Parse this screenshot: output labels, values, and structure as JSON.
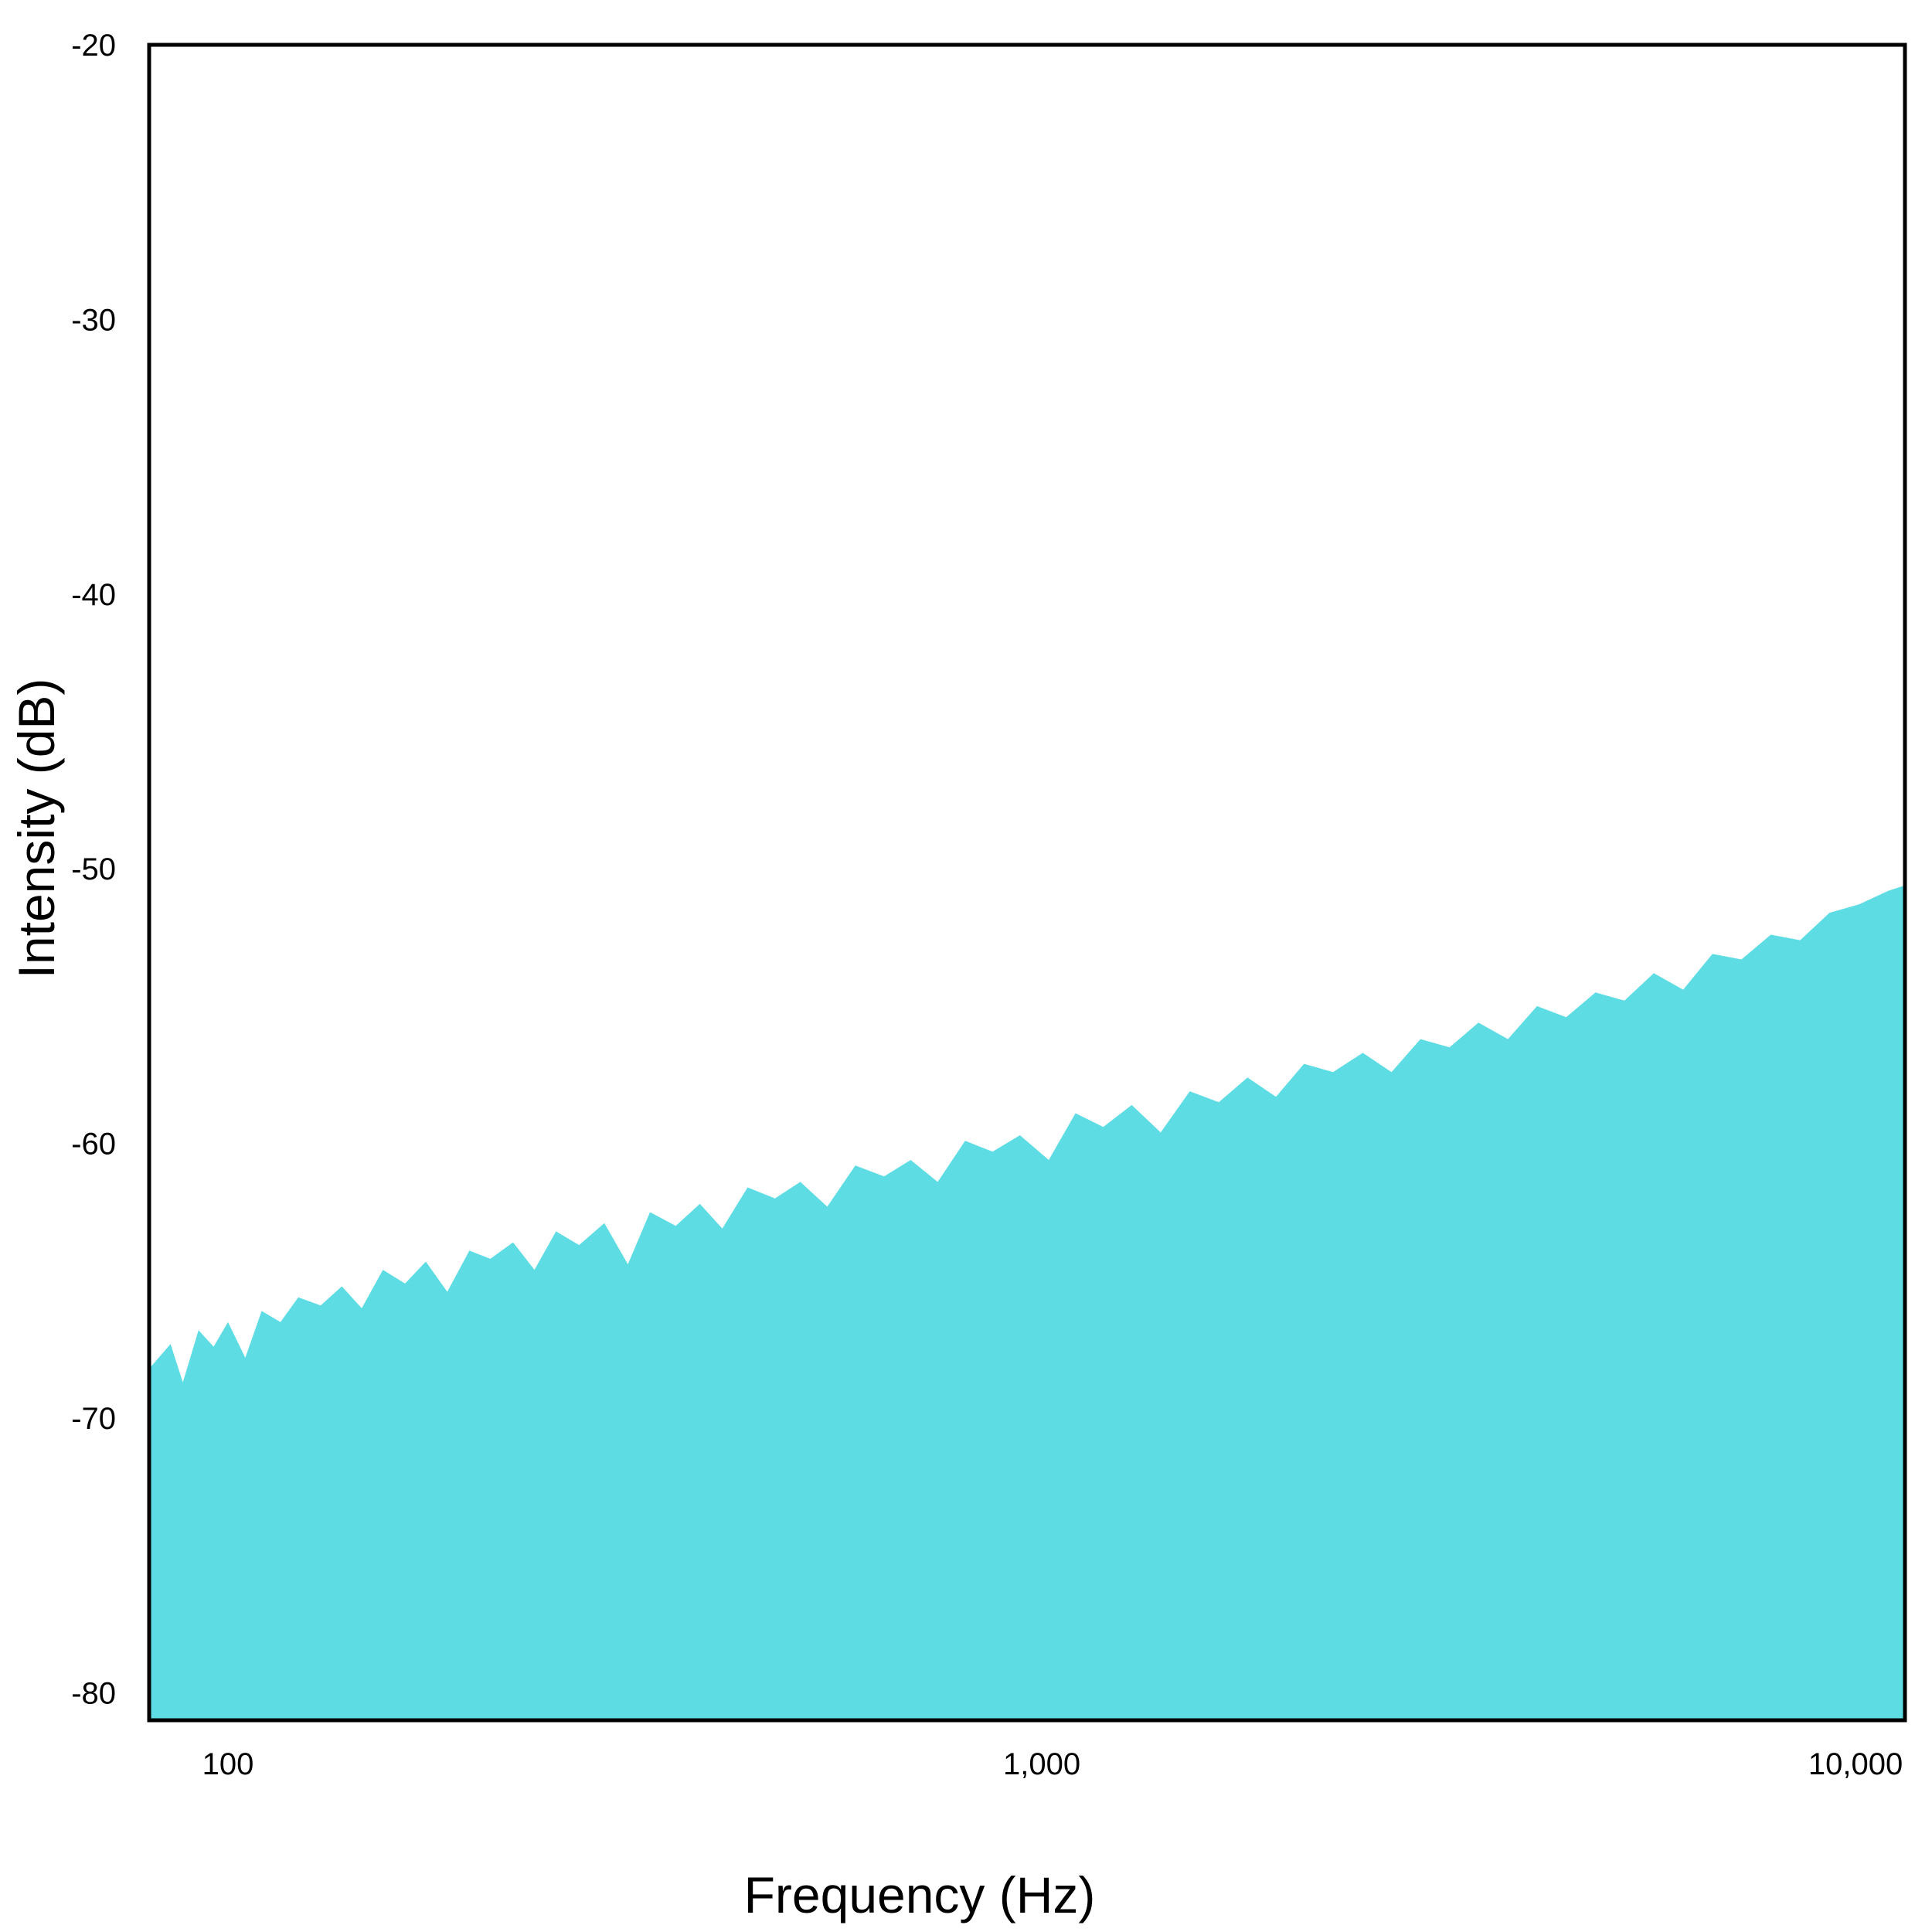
{
  "chart_data": {
    "type": "area",
    "title": "",
    "xlabel": "Frequency (Hz)",
    "ylabel": "Intensity (dB)",
    "x_scale": "log",
    "xlim": [
      80,
      11500
    ],
    "ylim": [
      -81,
      -20
    ],
    "x_ticks": [
      {
        "value": 100,
        "label": "100"
      },
      {
        "value": 1000,
        "label": "1,000"
      },
      {
        "value": 10000,
        "label": "10,000"
      }
    ],
    "y_ticks": [
      {
        "value": -20,
        "label": "-20"
      },
      {
        "value": -30,
        "label": "-30"
      },
      {
        "value": -40,
        "label": "-40"
      },
      {
        "value": -50,
        "label": "-50"
      },
      {
        "value": -60,
        "label": "-60"
      },
      {
        "value": -70,
        "label": "-70"
      },
      {
        "value": -80,
        "label": "-80"
      }
    ],
    "grid": false,
    "series": [
      {
        "color": "#5ddde3",
        "x": [
          80,
          85,
          88,
          92,
          96,
          100,
          105,
          110,
          116,
          122,
          130,
          138,
          146,
          155,
          165,
          175,
          186,
          198,
          210,
          224,
          238,
          253,
          270,
          290,
          310,
          330,
          355,
          380,
          405,
          435,
          470,
          505,
          545,
          590,
          640,
          690,
          745,
          805,
          870,
          940,
          1020,
          1100,
          1190,
          1290,
          1400,
          1520,
          1650,
          1790,
          1940,
          2100,
          2280,
          2480,
          2690,
          2920,
          3170,
          3440,
          3740,
          4060,
          4410,
          4790,
          5200,
          5650,
          6140,
          6670,
          7240,
          7870,
          8550,
          9290,
          10090,
          10970,
          11500
        ],
        "y": [
          -68.2,
          -67.3,
          -68.7,
          -66.8,
          -67.4,
          -66.5,
          -67.8,
          -66.1,
          -66.5,
          -65.6,
          -65.9,
          -65.2,
          -66.0,
          -64.6,
          -65.1,
          -64.3,
          -65.4,
          -63.9,
          -64.2,
          -63.6,
          -64.6,
          -63.2,
          -63.7,
          -62.9,
          -64.4,
          -62.5,
          -63.0,
          -62.2,
          -63.1,
          -61.6,
          -62.0,
          -61.4,
          -62.3,
          -60.8,
          -61.2,
          -60.6,
          -61.4,
          -59.9,
          -60.3,
          -59.7,
          -60.6,
          -58.9,
          -59.4,
          -58.6,
          -59.6,
          -58.1,
          -58.5,
          -57.6,
          -58.3,
          -57.1,
          -57.4,
          -56.7,
          -57.4,
          -56.2,
          -56.5,
          -55.6,
          -56.2,
          -55.0,
          -55.4,
          -54.5,
          -54.8,
          -53.8,
          -54.4,
          -53.1,
          -53.3,
          -52.4,
          -52.6,
          -51.6,
          -51.3,
          -50.8,
          -50.6
        ]
      }
    ]
  }
}
